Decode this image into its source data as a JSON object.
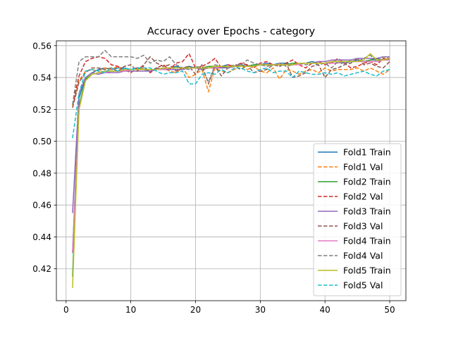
{
  "chart_data": {
    "type": "line",
    "title": "Accuracy over Epochs - category",
    "xlabel": "",
    "ylabel": "",
    "xlim": [
      -1.5,
      52.5
    ],
    "ylim": [
      0.4,
      0.563
    ],
    "xticks": [
      0,
      10,
      20,
      30,
      40,
      50
    ],
    "yticks": [
      0.42,
      0.44,
      0.46,
      0.48,
      0.5,
      0.52,
      0.54,
      0.56
    ],
    "ytick_labels": [
      "0.42",
      "0.44",
      "0.46",
      "0.48",
      "0.50",
      "0.52",
      "0.54",
      "0.56"
    ],
    "grid": true,
    "legend_position": "lower-right",
    "x": [
      1,
      2,
      3,
      4,
      5,
      6,
      7,
      8,
      9,
      10,
      11,
      12,
      13,
      14,
      15,
      16,
      17,
      18,
      19,
      20,
      21,
      22,
      23,
      24,
      25,
      26,
      27,
      28,
      29,
      30,
      31,
      32,
      33,
      34,
      35,
      36,
      37,
      38,
      39,
      40,
      41,
      42,
      43,
      44,
      45,
      46,
      47,
      48,
      49,
      50
    ],
    "series": [
      {
        "name": "Fold1 Train",
        "color": "#1f77b4",
        "dash": false,
        "values": [
          0.43,
          0.527,
          0.54,
          0.543,
          0.545,
          0.546,
          0.545,
          0.546,
          0.546,
          0.545,
          0.546,
          0.545,
          0.544,
          0.546,
          0.545,
          0.546,
          0.547,
          0.546,
          0.547,
          0.546,
          0.545,
          0.546,
          0.547,
          0.547,
          0.548,
          0.547,
          0.548,
          0.547,
          0.548,
          0.548,
          0.549,
          0.548,
          0.549,
          0.549,
          0.548,
          0.549,
          0.549,
          0.55,
          0.549,
          0.549,
          0.55,
          0.55,
          0.549,
          0.55,
          0.551,
          0.55,
          0.551,
          0.552,
          0.551,
          0.552
        ]
      },
      {
        "name": "Fold1 Val",
        "color": "#ff7f0e",
        "dash": true,
        "values": [
          0.522,
          0.538,
          0.544,
          0.545,
          0.544,
          0.546,
          0.545,
          0.547,
          0.544,
          0.545,
          0.545,
          0.546,
          0.544,
          0.545,
          0.546,
          0.544,
          0.543,
          0.546,
          0.54,
          0.542,
          0.545,
          0.531,
          0.546,
          0.544,
          0.543,
          0.545,
          0.548,
          0.545,
          0.547,
          0.544,
          0.543,
          0.546,
          0.539,
          0.545,
          0.544,
          0.542,
          0.544,
          0.545,
          0.543,
          0.546,
          0.544,
          0.545,
          0.545,
          0.545,
          0.546,
          0.544,
          0.546,
          0.544,
          0.542,
          0.545
        ]
      },
      {
        "name": "Fold2 Train",
        "color": "#2ca02c",
        "dash": false,
        "values": [
          0.415,
          0.522,
          0.539,
          0.542,
          0.543,
          0.544,
          0.544,
          0.544,
          0.545,
          0.545,
          0.545,
          0.545,
          0.545,
          0.545,
          0.546,
          0.546,
          0.546,
          0.546,
          0.546,
          0.546,
          0.546,
          0.547,
          0.547,
          0.546,
          0.547,
          0.547,
          0.547,
          0.547,
          0.548,
          0.548,
          0.548,
          0.548,
          0.548,
          0.548,
          0.549,
          0.549,
          0.549,
          0.549,
          0.549,
          0.549,
          0.55,
          0.55,
          0.55,
          0.55,
          0.55,
          0.55,
          0.551,
          0.551,
          0.551,
          0.551
        ]
      },
      {
        "name": "Fold2 Val",
        "color": "#d62728",
        "dash": true,
        "values": [
          0.523,
          0.541,
          0.55,
          0.552,
          0.553,
          0.552,
          0.548,
          0.547,
          0.545,
          0.543,
          0.546,
          0.547,
          0.543,
          0.546,
          0.548,
          0.545,
          0.549,
          0.55,
          0.555,
          0.546,
          0.547,
          0.549,
          0.552,
          0.546,
          0.548,
          0.547,
          0.549,
          0.548,
          0.546,
          0.549,
          0.55,
          0.548,
          0.547,
          0.549,
          0.551,
          0.548,
          0.546,
          0.549,
          0.55,
          0.548,
          0.549,
          0.552,
          0.549,
          0.546,
          0.547,
          0.549,
          0.55,
          0.548,
          0.552,
          0.551
        ]
      },
      {
        "name": "Fold3 Train",
        "color": "#9467bd",
        "dash": false,
        "values": [
          0.455,
          0.53,
          0.54,
          0.543,
          0.542,
          0.543,
          0.543,
          0.543,
          0.544,
          0.544,
          0.544,
          0.544,
          0.544,
          0.545,
          0.545,
          0.545,
          0.545,
          0.545,
          0.546,
          0.546,
          0.545,
          0.546,
          0.546,
          0.546,
          0.546,
          0.547,
          0.547,
          0.547,
          0.547,
          0.548,
          0.548,
          0.548,
          0.548,
          0.548,
          0.548,
          0.549,
          0.549,
          0.549,
          0.55,
          0.55,
          0.551,
          0.551,
          0.551,
          0.551,
          0.552,
          0.552,
          0.552,
          0.552,
          0.553,
          0.553
        ]
      },
      {
        "name": "Fold3 Val",
        "color": "#8c564b",
        "dash": true,
        "values": [
          0.521,
          0.537,
          0.543,
          0.546,
          0.546,
          0.545,
          0.546,
          0.544,
          0.547,
          0.548,
          0.544,
          0.548,
          0.553,
          0.549,
          0.547,
          0.548,
          0.544,
          0.546,
          0.547,
          0.542,
          0.548,
          0.536,
          0.547,
          0.541,
          0.546,
          0.547,
          0.545,
          0.548,
          0.543,
          0.544,
          0.545,
          0.548,
          0.547,
          0.549,
          0.54,
          0.541,
          0.543,
          0.547,
          0.548,
          0.54,
          0.545,
          0.546,
          0.548,
          0.549,
          0.552,
          0.548,
          0.549,
          0.547,
          0.546,
          0.55
        ]
      },
      {
        "name": "Fold4 Train",
        "color": "#e377c2",
        "dash": false,
        "values": [
          0.43,
          0.52,
          0.538,
          0.542,
          0.543,
          0.543,
          0.544,
          0.544,
          0.544,
          0.545,
          0.545,
          0.545,
          0.545,
          0.545,
          0.545,
          0.546,
          0.546,
          0.546,
          0.546,
          0.546,
          0.546,
          0.546,
          0.546,
          0.547,
          0.547,
          0.547,
          0.547,
          0.547,
          0.547,
          0.548,
          0.548,
          0.548,
          0.548,
          0.548,
          0.548,
          0.548,
          0.549,
          0.549,
          0.549,
          0.549,
          0.549,
          0.549,
          0.55,
          0.55,
          0.55,
          0.55,
          0.55,
          0.55,
          0.551,
          0.551
        ]
      },
      {
        "name": "Fold4 Val",
        "color": "#7f7f7f",
        "dash": true,
        "values": [
          0.523,
          0.55,
          0.553,
          0.553,
          0.553,
          0.557,
          0.553,
          0.553,
          0.553,
          0.553,
          0.552,
          0.554,
          0.549,
          0.551,
          0.55,
          0.553,
          0.548,
          0.546,
          0.545,
          0.547,
          0.546,
          0.537,
          0.548,
          0.547,
          0.546,
          0.548,
          0.548,
          0.551,
          0.549,
          0.548,
          0.547,
          0.548,
          0.549,
          0.547,
          0.548,
          0.549,
          0.548,
          0.549,
          0.548,
          0.549,
          0.546,
          0.55,
          0.548,
          0.551,
          0.55,
          0.552,
          0.554,
          0.55,
          0.553,
          0.552
        ]
      },
      {
        "name": "Fold5 Train",
        "color": "#bcbd22",
        "dash": false,
        "values": [
          0.408,
          0.52,
          0.538,
          0.542,
          0.543,
          0.544,
          0.544,
          0.544,
          0.545,
          0.545,
          0.545,
          0.545,
          0.545,
          0.545,
          0.546,
          0.546,
          0.546,
          0.546,
          0.546,
          0.546,
          0.546,
          0.546,
          0.547,
          0.547,
          0.547,
          0.547,
          0.547,
          0.547,
          0.547,
          0.548,
          0.548,
          0.548,
          0.548,
          0.548,
          0.548,
          0.549,
          0.549,
          0.549,
          0.549,
          0.549,
          0.55,
          0.55,
          0.55,
          0.55,
          0.55,
          0.551,
          0.555,
          0.551,
          0.551,
          0.552
        ]
      },
      {
        "name": "Fold5 Val",
        "color": "#17becf",
        "dash": true,
        "values": [
          0.502,
          0.53,
          0.544,
          0.545,
          0.544,
          0.543,
          0.546,
          0.544,
          0.546,
          0.545,
          0.546,
          0.546,
          0.546,
          0.544,
          0.542,
          0.543,
          0.543,
          0.544,
          0.536,
          0.536,
          0.542,
          0.543,
          0.542,
          0.545,
          0.543,
          0.546,
          0.546,
          0.544,
          0.543,
          0.545,
          0.546,
          0.543,
          0.544,
          0.544,
          0.54,
          0.544,
          0.543,
          0.542,
          0.542,
          0.543,
          0.542,
          0.543,
          0.541,
          0.542,
          0.543,
          0.544,
          0.542,
          0.541,
          0.544,
          0.545
        ]
      }
    ]
  }
}
